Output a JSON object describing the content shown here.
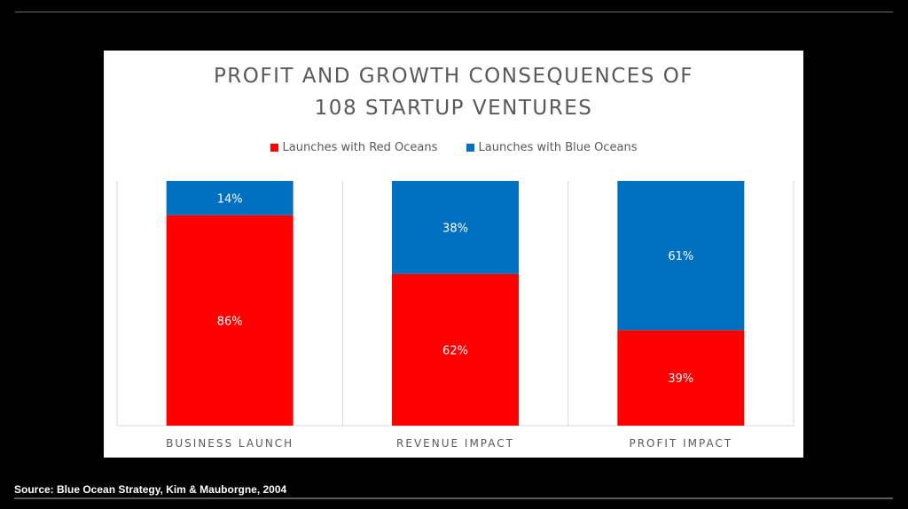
{
  "source": "Source: Blue Ocean Strategy, Kim & Mauborgne, 2004",
  "chart_data": {
    "type": "bar",
    "stacked": true,
    "title": "PROFIT AND GROWTH CONSEQUENCES OF 108 STARTUP VENTURES",
    "title_lines": [
      "PROFIT AND GROWTH CONSEQUENCES OF",
      "108 STARTUP VENTURES"
    ],
    "categories": [
      "BUSINESS LAUNCH",
      "REVENUE IMPACT",
      "PROFIT IMPACT"
    ],
    "series": [
      {
        "name": "Launches with Red Oceans",
        "color": "#ff0000",
        "values": [
          86,
          62,
          39
        ],
        "labels": [
          "86%",
          "62%",
          "39%"
        ]
      },
      {
        "name": "Launches with Blue Oceans",
        "color": "#0070c0",
        "values": [
          14,
          38,
          61
        ],
        "labels": [
          "14%",
          "38%",
          "61%"
        ]
      }
    ],
    "ylim": [
      0,
      100
    ],
    "legend": "top",
    "grid": "vertical category separators",
    "xlabel": "",
    "ylabel": ""
  }
}
